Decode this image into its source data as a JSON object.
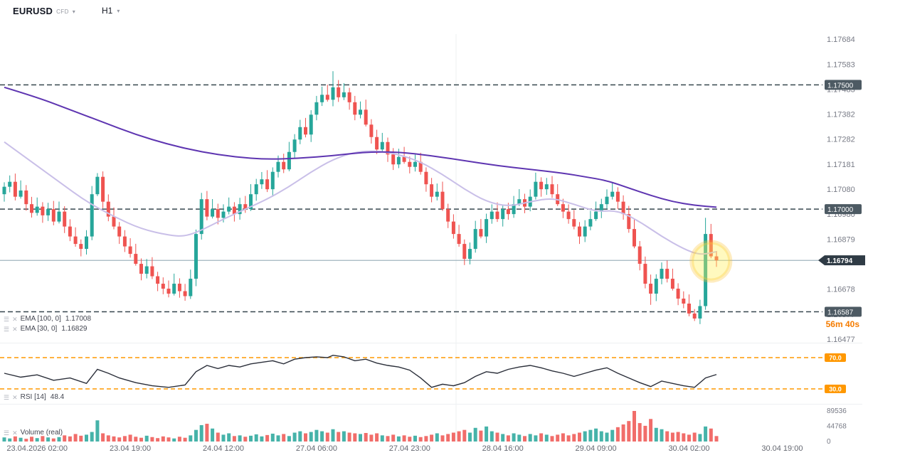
{
  "header": {
    "symbol": "EURUSD",
    "market_type": "CFD",
    "timeframe": "H1"
  },
  "countdown": "56m 40s",
  "legends": {
    "ema100": {
      "label": "EMA [100, 0]",
      "value": "1.17008"
    },
    "ema30": {
      "label": "EMA [30, 0]",
      "value": "1.16829"
    },
    "rsi": {
      "label": "RSI [14]",
      "value": "48.4"
    },
    "volume": {
      "label": "Volume (real)"
    }
  },
  "colors": {
    "bullish": "#26a69a",
    "bearish": "#ef5350",
    "ema100": "#5e35b1",
    "ema30": "#c9bfe8",
    "level_line": "#37474f",
    "level_badge": "#4d5a63",
    "price_badge": "#2f3b45",
    "price_line": "#7a96a5",
    "rsi_line": "#2a2e39",
    "rsi_level": "#ff9800",
    "axis_text": "#787b86",
    "time_text": "#656871",
    "highlight_fill": "#ffee58",
    "highlight_ring": "#fbc02d",
    "divider": "#eef0f2"
  },
  "chart_data": {
    "type": "candlestick",
    "symbol": "EURUSD",
    "timeframe": "H1",
    "price_axis": {
      "ylim": [
        1.16477,
        1.17684
      ],
      "ticks": [
        1.17684,
        1.17583,
        1.17483,
        1.17382,
        1.17282,
        1.17181,
        1.1708,
        1.1698,
        1.16879,
        1.16678,
        1.16577,
        1.16477
      ]
    },
    "levels": [
      {
        "price": 1.175,
        "label": "1.17500"
      },
      {
        "price": 1.17,
        "label": "1.17000"
      },
      {
        "price": 1.16587,
        "label": "1.16587"
      }
    ],
    "current_price": {
      "value": 1.16794,
      "label": "1.16794"
    },
    "first_open": 1.1706,
    "default_wick": 0.0003,
    "closes": [
      1.1709,
      1.1711,
      1.1705,
      1.17075,
      1.1702,
      1.16985,
      1.1701,
      1.16975,
      1.17,
      1.1695,
      1.1699,
      1.1693,
      1.1689,
      1.1686,
      1.1684,
      1.1689,
      1.1706,
      1.1713,
      1.1703,
      1.1697,
      1.1693,
      1.1689,
      1.1685,
      1.1682,
      1.1678,
      1.1674,
      1.1677,
      1.1673,
      1.167,
      1.1668,
      1.1666,
      1.167,
      1.1667,
      1.1665,
      1.1672,
      1.169,
      1.1704,
      1.1697,
      1.17,
      1.16965,
      1.1699,
      1.1701,
      1.1698,
      1.1702,
      1.17,
      1.1706,
      1.171,
      1.1712,
      1.1708,
      1.1715,
      1.1719,
      1.1716,
      1.1723,
      1.1728,
      1.1733,
      1.173,
      1.1738,
      1.1743,
      1.1746,
      1.1744,
      1.1749,
      1.1745,
      1.1747,
      1.1743,
      1.1738,
      1.174,
      1.1734,
      1.1729,
      1.1724,
      1.1727,
      1.1722,
      1.1718,
      1.1721,
      1.1719,
      1.1717,
      1.1719,
      1.1715,
      1.171,
      1.1705,
      1.1707,
      1.17,
      1.1695,
      1.169,
      1.1686,
      1.168,
      1.1684,
      1.1692,
      1.1689,
      1.1696,
      1.1699,
      1.1696,
      1.17,
      1.1698,
      1.1702,
      1.1704,
      1.1701,
      1.1705,
      1.1711,
      1.1708,
      1.171,
      1.1706,
      1.1702,
      1.1699,
      1.1696,
      1.1693,
      1.1689,
      1.1693,
      1.1696,
      1.1699,
      1.1702,
      1.1705,
      1.1707,
      1.1703,
      1.1698,
      1.1692,
      1.1685,
      1.1678,
      1.167,
      1.1666,
      1.1672,
      1.1676,
      1.1672,
      1.1668,
      1.1664,
      1.1662,
      1.1658,
      1.1656,
      1.1661,
      1.169,
      1.1681,
      1.16794
    ],
    "wick_overrides": {
      "17": {
        "high": 1.17145
      },
      "60": {
        "high": 1.17555
      },
      "84": {
        "low": 1.16775
      },
      "118": {
        "low": 1.16615
      },
      "126": {
        "low": 1.1655
      },
      "128": {
        "high": 1.16965
      }
    },
    "ema_100": {
      "label": "EMA [100, 0]",
      "last": 1.17008,
      "points": [
        [
          0,
          1.1749
        ],
        [
          6,
          1.1745
        ],
        [
          12,
          1.174
        ],
        [
          18,
          1.1735
        ],
        [
          24,
          1.173
        ],
        [
          30,
          1.1726
        ],
        [
          36,
          1.1723
        ],
        [
          42,
          1.1721
        ],
        [
          48,
          1.172
        ],
        [
          54,
          1.17205
        ],
        [
          60,
          1.17215
        ],
        [
          66,
          1.1723
        ],
        [
          72,
          1.1723
        ],
        [
          78,
          1.17215
        ],
        [
          84,
          1.17195
        ],
        [
          90,
          1.17175
        ],
        [
          96,
          1.1716
        ],
        [
          102,
          1.17145
        ],
        [
          106,
          1.1713
        ],
        [
          110,
          1.17115
        ],
        [
          114,
          1.17085
        ],
        [
          118,
          1.17055
        ],
        [
          122,
          1.1703
        ],
        [
          126,
          1.17015
        ],
        [
          130,
          1.17008
        ]
      ]
    },
    "ema_30": {
      "label": "EMA [30, 0]",
      "last": 1.16829,
      "points": [
        [
          0,
          1.1727
        ],
        [
          5,
          1.1719
        ],
        [
          10,
          1.1711
        ],
        [
          15,
          1.1703
        ],
        [
          20,
          1.1697
        ],
        [
          25,
          1.1692
        ],
        [
          30,
          1.16895
        ],
        [
          33,
          1.1689
        ],
        [
          36,
          1.16915
        ],
        [
          40,
          1.1696
        ],
        [
          44,
          1.17
        ],
        [
          48,
          1.1704
        ],
        [
          52,
          1.1709
        ],
        [
          56,
          1.1715
        ],
        [
          60,
          1.172
        ],
        [
          64,
          1.1723
        ],
        [
          68,
          1.17235
        ],
        [
          72,
          1.1722
        ],
        [
          76,
          1.1719
        ],
        [
          80,
          1.1714
        ],
        [
          84,
          1.1708
        ],
        [
          88,
          1.1703
        ],
        [
          92,
          1.1701
        ],
        [
          96,
          1.1703
        ],
        [
          100,
          1.17045
        ],
        [
          104,
          1.1702
        ],
        [
          108,
          1.1699
        ],
        [
          112,
          1.16995
        ],
        [
          116,
          1.1695
        ],
        [
          120,
          1.1689
        ],
        [
          124,
          1.1684
        ],
        [
          127,
          1.16815
        ],
        [
          130,
          1.16829
        ]
      ]
    },
    "rsi": {
      "period": 14,
      "last": 48.4,
      "levels": [
        70.0,
        30.0
      ],
      "points": [
        [
          0,
          50
        ],
        [
          3,
          45
        ],
        [
          6,
          48
        ],
        [
          9,
          41
        ],
        [
          12,
          44
        ],
        [
          15,
          37
        ],
        [
          17,
          55
        ],
        [
          19,
          50
        ],
        [
          21,
          44
        ],
        [
          24,
          38
        ],
        [
          27,
          34
        ],
        [
          30,
          32
        ],
        [
          33,
          35
        ],
        [
          35,
          52
        ],
        [
          37,
          60
        ],
        [
          39,
          56
        ],
        [
          41,
          60
        ],
        [
          43,
          58
        ],
        [
          45,
          62
        ],
        [
          47,
          64
        ],
        [
          49,
          66
        ],
        [
          51,
          62
        ],
        [
          53,
          68
        ],
        [
          55,
          70
        ],
        [
          57,
          71
        ],
        [
          59,
          70
        ],
        [
          60,
          73
        ],
        [
          62,
          71
        ],
        [
          64,
          66
        ],
        [
          66,
          68
        ],
        [
          68,
          63
        ],
        [
          70,
          60
        ],
        [
          72,
          58
        ],
        [
          74,
          54
        ],
        [
          76,
          44
        ],
        [
          78,
          32
        ],
        [
          80,
          36
        ],
        [
          82,
          34
        ],
        [
          84,
          38
        ],
        [
          86,
          46
        ],
        [
          88,
          52
        ],
        [
          90,
          50
        ],
        [
          92,
          55
        ],
        [
          94,
          58
        ],
        [
          96,
          60
        ],
        [
          98,
          57
        ],
        [
          100,
          53
        ],
        [
          102,
          50
        ],
        [
          104,
          46
        ],
        [
          106,
          50
        ],
        [
          108,
          54
        ],
        [
          110,
          57
        ],
        [
          112,
          50
        ],
        [
          114,
          44
        ],
        [
          116,
          38
        ],
        [
          118,
          33
        ],
        [
          120,
          40
        ],
        [
          122,
          37
        ],
        [
          124,
          34
        ],
        [
          126,
          32
        ],
        [
          128,
          44
        ],
        [
          130,
          48.4
        ]
      ]
    },
    "volume": {
      "axis_ticks": [
        89536,
        44768,
        0
      ],
      "max": 89536,
      "values": [
        12000,
        9000,
        15000,
        11000,
        8000,
        14000,
        10000,
        16000,
        12000,
        9000,
        13000,
        18000,
        15000,
        22000,
        17000,
        20000,
        28000,
        62000,
        24000,
        18000,
        15000,
        12000,
        16000,
        20000,
        14000,
        11000,
        17000,
        13000,
        10000,
        15000,
        12000,
        9000,
        14000,
        11000,
        18000,
        34000,
        48000,
        52000,
        38000,
        26000,
        20000,
        24000,
        16000,
        18000,
        14000,
        17000,
        21000,
        15000,
        19000,
        23000,
        18000,
        22000,
        16000,
        26000,
        30000,
        24000,
        28000,
        34000,
        30000,
        26000,
        36000,
        28000,
        30000,
        26000,
        24000,
        22000,
        25000,
        20000,
        24000,
        18000,
        16000,
        20000,
        15000,
        18000,
        14000,
        17000,
        13000,
        16000,
        20000,
        24000,
        18000,
        22000,
        26000,
        30000,
        34000,
        26000,
        40000,
        32000,
        44000,
        30000,
        26000,
        22000,
        18000,
        24000,
        20000,
        16000,
        22000,
        18000,
        24000,
        20000,
        16000,
        20000,
        24000,
        18000,
        22000,
        26000,
        30000,
        34000,
        38000,
        30000,
        26000,
        34000,
        42000,
        50000,
        60000,
        89536,
        54000,
        46000,
        66000,
        40000,
        36000,
        30000,
        26000,
        28000,
        24000,
        20000,
        26000,
        22000,
        44000,
        38000,
        16000
      ]
    },
    "time_axis": {
      "labels": [
        {
          "index": 6,
          "label": "23.04.2026 02:00"
        },
        {
          "index": 23,
          "label": "23.04 19:00"
        },
        {
          "index": 40,
          "label": "24.04 12:00"
        },
        {
          "index": 57,
          "label": "27.04 06:00"
        },
        {
          "index": 74,
          "label": "27.04 23:00"
        },
        {
          "index": 91,
          "label": "28.04 16:00"
        },
        {
          "index": 108,
          "label": "29.04 09:00"
        },
        {
          "index": 125,
          "label": "30.04 02:00"
        },
        {
          "index": 142,
          "label": "30.04 19:00"
        }
      ]
    },
    "highlight": {
      "index": 129,
      "price": 1.1679
    }
  }
}
